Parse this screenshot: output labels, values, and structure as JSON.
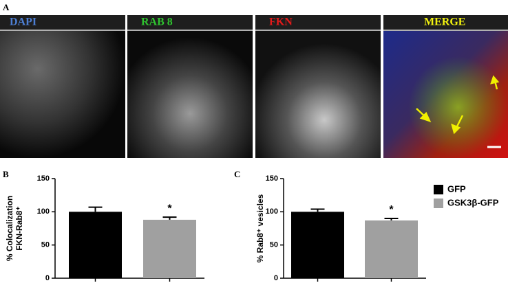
{
  "panels": {
    "letter": "A",
    "images": [
      {
        "label": "DAPI",
        "color": "#4d7fd4"
      },
      {
        "label": "RAB 8",
        "color": "#2fc42f"
      },
      {
        "label": "FKN",
        "color": "#e21a1a"
      },
      {
        "label": "MERGE",
        "color": "#f2f20f"
      }
    ]
  },
  "legend": [
    {
      "name": "GFP",
      "color": "#000000"
    },
    {
      "name": "GSK3β-GFP",
      "color": "#a0a0a0"
    }
  ],
  "chart_data": [
    {
      "type": "bar",
      "letter": "B",
      "ylabel": [
        "% Colocalization",
        "FKN-Rab8⁺"
      ],
      "categories": [
        null,
        null
      ],
      "values": [
        100,
        88
      ],
      "errors": [
        7,
        4
      ],
      "colors": [
        "#000000",
        "#a0a0a0"
      ],
      "annotation": "*",
      "ylim": [
        0,
        150
      ],
      "yticks": [
        0,
        50,
        100,
        150
      ]
    },
    {
      "type": "bar",
      "letter": "C",
      "ylabel": [
        "% Rab8⁺ vesicles"
      ],
      "categories": [
        null,
        null
      ],
      "values": [
        100,
        87
      ],
      "errors": [
        4,
        3
      ],
      "colors": [
        "#000000",
        "#a0a0a0"
      ],
      "annotation": "*",
      "ylim": [
        0,
        150
      ],
      "yticks": [
        0,
        50,
        100,
        150
      ]
    }
  ]
}
